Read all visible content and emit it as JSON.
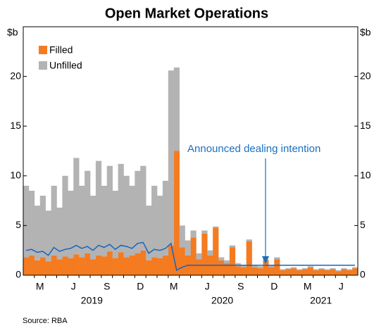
{
  "chart_data": {
    "type": "stacked-bar",
    "title": "Open Market Operations",
    "y_unit": "$b",
    "source": "Source: RBA",
    "annotation": "Announced dealing intention",
    "categories": [
      null,
      null,
      null,
      "M",
      null,
      null,
      null,
      null,
      null,
      "J",
      null,
      null,
      null,
      null,
      null,
      "S",
      null,
      null,
      null,
      null,
      null,
      "D",
      null,
      null,
      null,
      null,
      null,
      "M",
      null,
      null,
      null,
      null,
      null,
      "J",
      null,
      null,
      null,
      null,
      null,
      "S",
      null,
      null,
      null,
      null,
      null,
      "D",
      null,
      null,
      null,
      null,
      null,
      "M",
      null,
      null,
      null,
      null,
      null,
      "J",
      null,
      null
    ],
    "years": [
      "2019",
      "2020",
      "2021"
    ],
    "series": [
      {
        "name": "Filled",
        "color": "#f47b20",
        "values": [
          1.8,
          2.0,
          1.5,
          1.8,
          1.4,
          2.0,
          1.6,
          1.9,
          1.7,
          2.1,
          1.8,
          2.2,
          1.6,
          2.0,
          1.9,
          2.4,
          1.7,
          2.3,
          1.8,
          2.0,
          2.2,
          2.5,
          1.5,
          1.8,
          1.7,
          2.0,
          3.0,
          12.5,
          2.8,
          2.0,
          3.8,
          1.6,
          4.2,
          2.0,
          4.8,
          1.5,
          1.2,
          2.8,
          0.9,
          0.8,
          3.4,
          0.8,
          0.7,
          1.5,
          0.8,
          1.6,
          0.5,
          0.6,
          0.7,
          0.5,
          0.6,
          0.8,
          0.5,
          0.6,
          0.5,
          0.6,
          0.4,
          0.6,
          0.5,
          0.7
        ]
      },
      {
        "name": "Unfilled",
        "color": "#b3b3b3",
        "values": [
          7.2,
          6.5,
          5.5,
          6.2,
          5.1,
          7.0,
          5.2,
          8.1,
          6.8,
          9.7,
          7.2,
          8.3,
          6.4,
          9.5,
          7.1,
          8.6,
          6.8,
          8.9,
          8.2,
          7.0,
          8.3,
          8.5,
          5.5,
          7.2,
          6.3,
          7.5,
          17.6,
          8.4,
          2.2,
          1.5,
          0.7,
          0.6,
          0.3,
          0.5,
          0.1,
          0.3,
          0.3,
          0.2,
          0.3,
          0.2,
          0.2,
          0.2,
          0.2,
          0.1,
          0.2,
          0.2,
          0.1,
          0.1,
          0.1,
          0.1,
          0.1,
          0.1,
          0.1,
          0.1,
          0.1,
          0.1,
          0.1,
          0.1,
          0.1,
          0.1
        ]
      }
    ],
    "line": {
      "color": "#1565c0",
      "values": [
        2.5,
        2.6,
        2.3,
        2.4,
        2.0,
        2.8,
        2.4,
        2.6,
        2.7,
        3.0,
        2.7,
        2.9,
        2.5,
        3.0,
        2.8,
        3.1,
        2.6,
        3.0,
        2.9,
        2.7,
        3.2,
        3.3,
        2.2,
        2.6,
        2.5,
        2.7,
        3.2,
        0.5,
        0.8,
        1.0,
        1,
        1,
        1,
        1,
        1,
        1,
        1,
        1,
        1,
        1,
        1,
        1,
        1,
        1,
        1,
        1,
        1,
        1,
        1,
        1,
        1,
        1,
        1,
        1,
        1,
        1,
        1,
        1,
        1,
        1
      ]
    },
    "ylim": [
      0,
      25
    ],
    "yticks": [
      0,
      5,
      10,
      15,
      20
    ],
    "legend": "top-left",
    "annotation_color": "#1a6fc0"
  }
}
